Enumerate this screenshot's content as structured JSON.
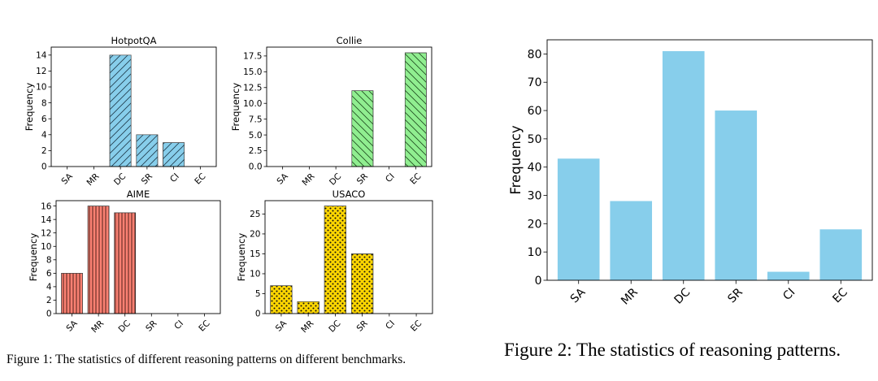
{
  "captions": {
    "figure1": "Figure 1: The statistics of different reasoning patterns on different benchmarks.",
    "figure2": "Figure 2: The statistics of reasoning patterns."
  },
  "chart_data": [
    {
      "type": "bar",
      "title": "HotpotQA",
      "ylabel": "Frequency",
      "categories": [
        "SA",
        "MR",
        "DC",
        "SR",
        "CI",
        "EC"
      ],
      "values": [
        0,
        0,
        14,
        4,
        3,
        0
      ],
      "ylim": [
        0,
        15
      ],
      "yticks": [
        "0",
        "2",
        "4",
        "6",
        "8",
        "10",
        "12",
        "14"
      ],
      "ytick_values": [
        0,
        2,
        4,
        6,
        8,
        10,
        12,
        14
      ],
      "color": "#87ceeb",
      "hatch": "diagonal",
      "grid": false
    },
    {
      "type": "bar",
      "title": "Collie",
      "ylabel": "Frequency",
      "categories": [
        "SA",
        "MR",
        "DC",
        "SR",
        "CI",
        "EC"
      ],
      "values": [
        0,
        0,
        0,
        12,
        0,
        18
      ],
      "ylim": [
        0,
        18.9
      ],
      "yticks": [
        "0.0",
        "2.5",
        "5.0",
        "7.5",
        "10.0",
        "12.5",
        "15.0",
        "17.5"
      ],
      "ytick_values": [
        0,
        2.5,
        5,
        7.5,
        10,
        12.5,
        15,
        17.5
      ],
      "color": "#90ee90",
      "hatch": "antidiagonal",
      "grid": false
    },
    {
      "type": "bar",
      "title": "AIME",
      "ylabel": "Frequency",
      "categories": [
        "SA",
        "MR",
        "DC",
        "SR",
        "CI",
        "EC"
      ],
      "values": [
        6,
        16,
        15,
        0,
        0,
        0
      ],
      "ylim": [
        0,
        16.8
      ],
      "yticks": [
        "0",
        "2",
        "4",
        "6",
        "8",
        "10",
        "12",
        "14",
        "16"
      ],
      "ytick_values": [
        0,
        2,
        4,
        6,
        8,
        10,
        12,
        14,
        16
      ],
      "color": "#fa8072",
      "hatch": "vertical",
      "grid": false
    },
    {
      "type": "bar",
      "title": "USACO",
      "ylabel": "Frequency",
      "categories": [
        "SA",
        "MR",
        "DC",
        "SR",
        "CI",
        "EC"
      ],
      "values": [
        7,
        3,
        27,
        15,
        0,
        0
      ],
      "ylim": [
        0,
        28.35
      ],
      "yticks": [
        "0",
        "5",
        "10",
        "15",
        "20",
        "25"
      ],
      "ytick_values": [
        0,
        5,
        10,
        15,
        20,
        25
      ],
      "color": "#ffd700",
      "hatch": "stars",
      "grid": false
    },
    {
      "type": "bar",
      "title": "",
      "ylabel": "Frequency",
      "categories": [
        "SA",
        "MR",
        "DC",
        "SR",
        "CI",
        "EC"
      ],
      "values": [
        43,
        28,
        81,
        60,
        3,
        18
      ],
      "ylim": [
        0,
        85
      ],
      "yticks": [
        "0",
        "10",
        "20",
        "30",
        "40",
        "50",
        "60",
        "70",
        "80"
      ],
      "ytick_values": [
        0,
        10,
        20,
        30,
        40,
        50,
        60,
        70,
        80
      ],
      "color": "#87ceeb",
      "hatch": "none",
      "grid": false
    }
  ]
}
